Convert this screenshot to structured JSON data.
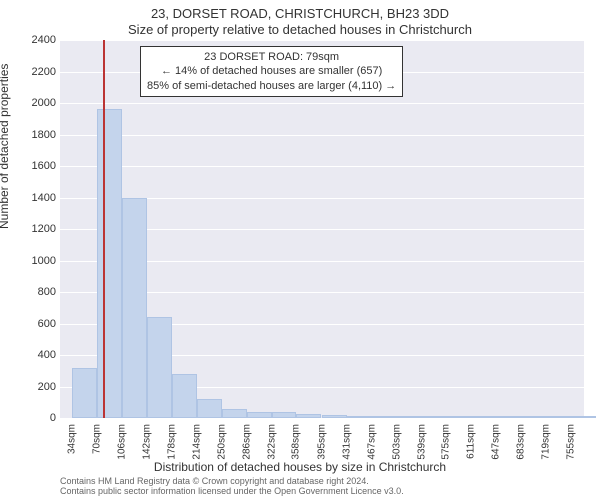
{
  "chart": {
    "type": "histogram",
    "title": "23, DORSET ROAD, CHRISTCHURCH, BH23 3DD",
    "subtitle": "Size of property relative to detached houses in Christchurch",
    "xlabel": "Distribution of detached houses by size in Christchurch",
    "ylabel": "Number of detached properties",
    "background_color": "#ffffff",
    "plot_background": "#eaeaf2",
    "grid_color": "#ffffff",
    "bar_fill": "#c4d4ec",
    "bar_border": "#afc4e4",
    "marker_color": "#bb3434",
    "text_color": "#333333",
    "title_fontsize": 13,
    "label_fontsize": 12,
    "tick_fontsize": 11,
    "xtick_fontsize": 10,
    "ylim": [
      0,
      2400
    ],
    "ytick_step": 200,
    "yticks": [
      0,
      200,
      400,
      600,
      800,
      1000,
      1200,
      1400,
      1600,
      1800,
      2000,
      2200,
      2400
    ],
    "xlim": [
      16,
      774
    ],
    "xtick_step": 36,
    "xtick_suffix": "sqm",
    "xticks": [
      34,
      70,
      106,
      142,
      178,
      214,
      250,
      286,
      322,
      358,
      395,
      431,
      467,
      503,
      539,
      575,
      611,
      647,
      683,
      719,
      755
    ],
    "bin_width": 36,
    "bins": [
      {
        "start": 34,
        "count": 320
      },
      {
        "start": 70,
        "count": 1960
      },
      {
        "start": 106,
        "count": 1400
      },
      {
        "start": 142,
        "count": 640
      },
      {
        "start": 178,
        "count": 280
      },
      {
        "start": 214,
        "count": 120
      },
      {
        "start": 250,
        "count": 60
      },
      {
        "start": 286,
        "count": 40
      },
      {
        "start": 322,
        "count": 40
      },
      {
        "start": 358,
        "count": 25
      },
      {
        "start": 395,
        "count": 18
      },
      {
        "start": 431,
        "count": 10
      },
      {
        "start": 467,
        "count": 6
      },
      {
        "start": 503,
        "count": 4
      },
      {
        "start": 539,
        "count": 3
      },
      {
        "start": 575,
        "count": 2
      },
      {
        "start": 611,
        "count": 2
      },
      {
        "start": 647,
        "count": 1
      },
      {
        "start": 683,
        "count": 1
      },
      {
        "start": 719,
        "count": 1
      },
      {
        "start": 755,
        "count": 1
      }
    ],
    "marker": {
      "value": 79,
      "label_line1": "23 DORSET ROAD: 79sqm",
      "label_line2": "← 14% of detached houses are smaller (657)",
      "label_line3": "85% of semi-detached houses are larger (4,110) →"
    },
    "footer_line1": "Contains HM Land Registry data © Crown copyright and database right 2024.",
    "footer_line2": "Contains public sector information licensed under the Open Government Licence v3.0."
  }
}
